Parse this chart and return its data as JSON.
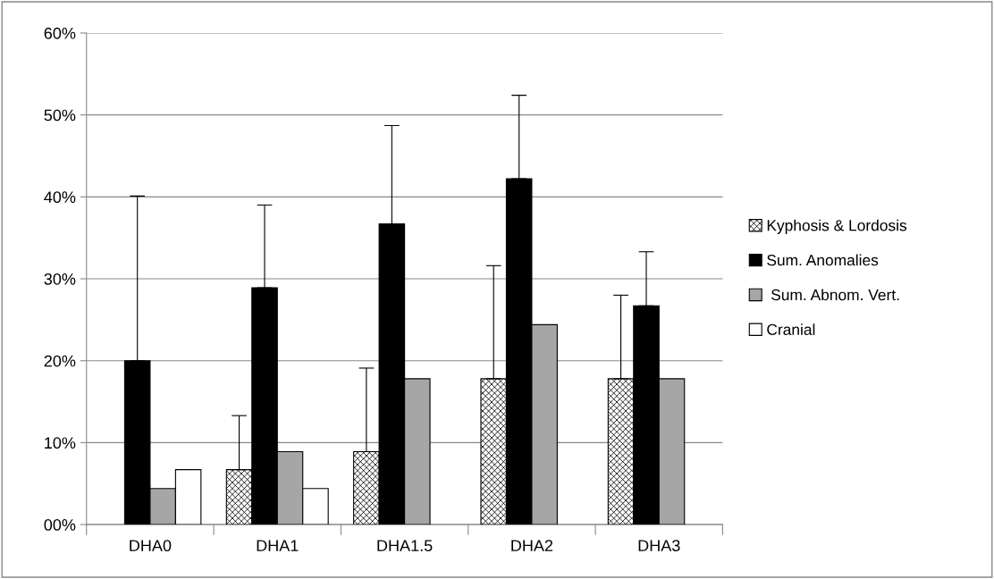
{
  "chart_data": {
    "type": "bar",
    "categories": [
      "DHA0",
      "DHA1",
      "DHA1.5",
      "DHA2",
      "DHA3"
    ],
    "series": [
      {
        "name": "Kyphosis & Lordosis",
        "color": "#000000",
        "values": [
          null,
          0.067,
          0.089,
          0.178,
          0.178
        ],
        "errors": [
          null,
          [
            0.067,
            0.133
          ],
          [
            0.089,
            0.191
          ],
          [
            0.178,
            0.316
          ],
          [
            0.178,
            0.28
          ]
        ]
      },
      {
        "name": "Sum. Anomalies",
        "color": "#000000",
        "values": [
          0.2,
          0.289,
          0.367,
          0.422,
          0.267
        ],
        "errors": [
          [
            0.2,
            0.401
          ],
          [
            0.289,
            0.39
          ],
          [
            0.367,
            0.487
          ],
          [
            0.422,
            0.524
          ],
          [
            0.267,
            0.333
          ]
        ]
      },
      {
        "name": " Sum. Abnom. Vert.",
        "color": "#a6a6a6",
        "values": [
          0.044,
          0.089,
          0.178,
          0.244,
          0.178
        ]
      },
      {
        "name": "Cranial",
        "color": "#ffffff",
        "values": [
          0.067,
          0.044,
          null,
          null,
          null
        ]
      }
    ],
    "ylim": [
      0,
      0.6
    ],
    "yticks": [
      {
        "value": 0,
        "label": "00%"
      },
      {
        "value": 0.1,
        "label": "10%"
      },
      {
        "value": 0.2,
        "label": "20%"
      },
      {
        "value": 0.3,
        "label": "30%"
      },
      {
        "value": 0.4,
        "label": "40%"
      },
      {
        "value": 0.5,
        "label": "50%"
      },
      {
        "value": 0.6,
        "label": "60%"
      }
    ],
    "grid": "y",
    "legend": "right"
  }
}
